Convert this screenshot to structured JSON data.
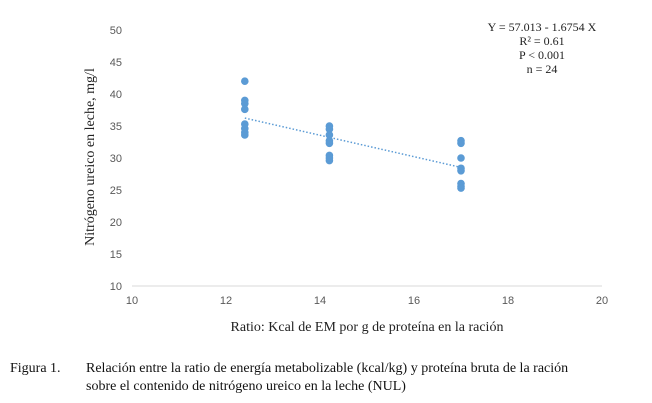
{
  "chart_data": {
    "type": "scatter",
    "xlabel": "Ratio: Kcal de EM por g de proteína en la ración",
    "ylabel": "Nitrógeno ureico en leche, mg/l",
    "xlim": [
      10,
      20
    ],
    "ylim": [
      10,
      50
    ],
    "xticks": [
      "10",
      "12",
      "14",
      "16",
      "18",
      "20"
    ],
    "yticks": [
      "10",
      "15",
      "20",
      "25",
      "30",
      "35",
      "40",
      "45",
      "50"
    ],
    "grid": false,
    "legend": "none",
    "marker_color": "#5B9BD5",
    "points": [
      {
        "x": 12.4,
        "y": 42.0
      },
      {
        "x": 12.4,
        "y": 39.0
      },
      {
        "x": 12.4,
        "y": 38.5
      },
      {
        "x": 12.4,
        "y": 37.6
      },
      {
        "x": 12.4,
        "y": 35.3
      },
      {
        "x": 12.4,
        "y": 34.6
      },
      {
        "x": 12.4,
        "y": 34.0
      },
      {
        "x": 12.4,
        "y": 33.6
      },
      {
        "x": 14.2,
        "y": 35.0
      },
      {
        "x": 14.2,
        "y": 34.5
      },
      {
        "x": 14.2,
        "y": 33.6
      },
      {
        "x": 14.2,
        "y": 32.7
      },
      {
        "x": 14.2,
        "y": 32.3
      },
      {
        "x": 14.2,
        "y": 30.4
      },
      {
        "x": 14.2,
        "y": 30.0
      },
      {
        "x": 14.2,
        "y": 29.6
      },
      {
        "x": 17.0,
        "y": 32.7
      },
      {
        "x": 17.0,
        "y": 32.3
      },
      {
        "x": 17.0,
        "y": 30.0
      },
      {
        "x": 17.0,
        "y": 28.4
      },
      {
        "x": 17.0,
        "y": 28.0
      },
      {
        "x": 17.0,
        "y": 26.0
      },
      {
        "x": 17.0,
        "y": 25.6
      },
      {
        "x": 17.0,
        "y": 25.3
      }
    ],
    "trendline": {
      "x_start": 12.4,
      "x_end": 17.0,
      "intercept": 57.013,
      "slope": -1.6754,
      "style": "dotted",
      "color": "#5B9BD5"
    },
    "annotations": [
      "Y = 57.013 - 1.6754 X",
      "R² = 0.61",
      "P < 0.001",
      "n = 24"
    ]
  },
  "caption": {
    "label": "Figura 1.",
    "line1": "Relación entre la ratio de energía metabolizable (kcal/kg) y proteína bruta de la ración",
    "line2": "sobre el contenido de nitrógeno ureico en la leche (NUL)"
  }
}
